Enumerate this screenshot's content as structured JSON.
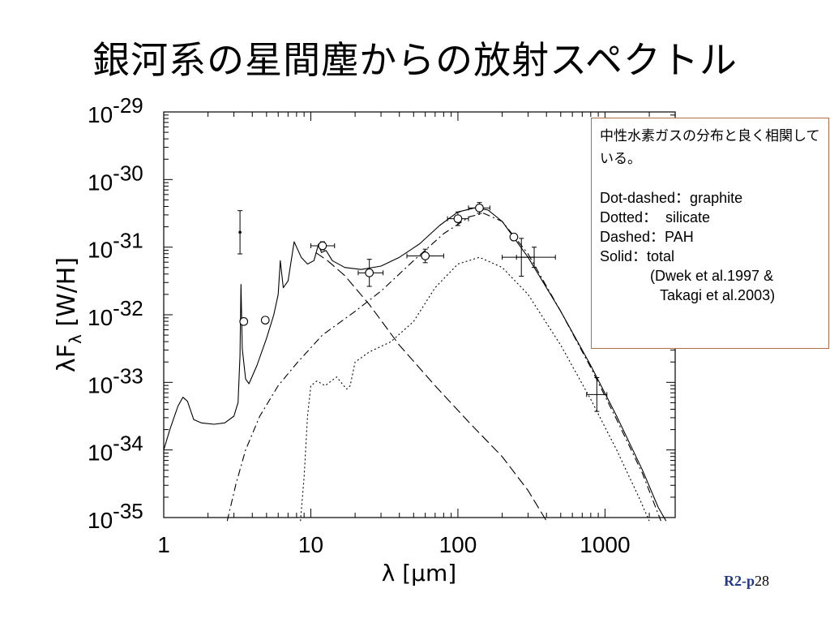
{
  "slide": {
    "title": "銀河系の星間塵からの放射スペクトル",
    "page_prefix": "R2-p",
    "page_number": "28"
  },
  "legend_box": {
    "description": "中性水素ガスの分布と良く相関している。",
    "lines": [
      "Dot-dashed：graphite",
      "Dotted：  silicate",
      "Dashed：PAH",
      "Solid：total"
    ],
    "reference_1": "(Dwek et al.1997 &",
    "reference_2": "Takagi et al.2003)"
  },
  "chart_data": {
    "type": "line",
    "x_scale": "log",
    "y_scale": "log",
    "xlim": [
      1,
      3000
    ],
    "ylim": [
      1e-35,
      1e-29
    ],
    "xlabel": "λ [μm]",
    "ylabel": "λF_λ  [W/H]",
    "x_ticks": [
      {
        "value": 1,
        "label": "1"
      },
      {
        "value": 10,
        "label": "10"
      },
      {
        "value": 100,
        "label": "100"
      },
      {
        "value": 1000,
        "label": "1000"
      }
    ],
    "y_ticks": [
      {
        "exp": -29,
        "base": "10",
        "sup": "-29"
      },
      {
        "exp": -30,
        "base": "10",
        "sup": "-30"
      },
      {
        "exp": -31,
        "base": "10",
        "sup": "-31"
      },
      {
        "exp": -32,
        "base": "10",
        "sup": "-32"
      },
      {
        "exp": -33,
        "base": "10",
        "sup": "-33"
      },
      {
        "exp": -34,
        "base": "10",
        "sup": "-34"
      },
      {
        "exp": -35,
        "base": "10",
        "sup": "-35"
      }
    ],
    "series": [
      {
        "style": "solid",
        "stroke": "#000000",
        "points": [
          [
            1.0,
            -34.0
          ],
          [
            1.1,
            -33.7
          ],
          [
            1.25,
            -33.35
          ],
          [
            1.35,
            -33.22
          ],
          [
            1.45,
            -33.28
          ],
          [
            1.6,
            -33.55
          ],
          [
            1.8,
            -33.6
          ],
          [
            2.2,
            -33.62
          ],
          [
            2.6,
            -33.6
          ],
          [
            3.0,
            -33.5
          ],
          [
            3.2,
            -33.3
          ],
          [
            3.3,
            -32.6
          ],
          [
            3.35,
            -31.55
          ],
          [
            3.42,
            -32.5
          ],
          [
            3.6,
            -32.95
          ],
          [
            3.8,
            -33.02
          ],
          [
            4.3,
            -32.75
          ],
          [
            5.0,
            -32.35
          ],
          [
            5.6,
            -32.0
          ],
          [
            6.0,
            -31.7
          ],
          [
            6.2,
            -31.2
          ],
          [
            6.5,
            -31.6
          ],
          [
            7.0,
            -31.5
          ],
          [
            7.7,
            -30.92
          ],
          [
            8.2,
            -31.05
          ],
          [
            8.6,
            -31.15
          ],
          [
            9.5,
            -31.25
          ],
          [
            10.5,
            -31.2
          ],
          [
            11.3,
            -30.95
          ],
          [
            11.8,
            -31.08
          ],
          [
            12.7,
            -31.05
          ],
          [
            14,
            -31.2
          ],
          [
            17,
            -31.3
          ],
          [
            22,
            -31.33
          ],
          [
            30,
            -31.28
          ],
          [
            40,
            -31.15
          ],
          [
            55,
            -30.95
          ],
          [
            75,
            -30.68
          ],
          [
            100,
            -30.48
          ],
          [
            130,
            -30.42
          ],
          [
            160,
            -30.45
          ],
          [
            200,
            -30.62
          ],
          [
            300,
            -31.15
          ],
          [
            500,
            -31.95
          ],
          [
            800,
            -32.75
          ],
          [
            1200,
            -33.5
          ],
          [
            1800,
            -34.3
          ],
          [
            2300,
            -34.85
          ],
          [
            2600,
            -35.05
          ]
        ]
      },
      {
        "style": "dashed",
        "stroke": "#000000",
        "points": [
          [
            10.8,
            -31.08
          ],
          [
            13,
            -31.2
          ],
          [
            17,
            -31.42
          ],
          [
            25,
            -31.85
          ],
          [
            40,
            -32.45
          ],
          [
            70,
            -33.05
          ],
          [
            120,
            -33.6
          ],
          [
            200,
            -34.1
          ],
          [
            300,
            -34.6
          ],
          [
            400,
            -35.05
          ]
        ]
      },
      {
        "style": "dotdash",
        "stroke": "#000000",
        "points": [
          [
            2.7,
            -35.05
          ],
          [
            3.1,
            -34.5
          ],
          [
            3.6,
            -34.0
          ],
          [
            4.5,
            -33.5
          ],
          [
            6,
            -33.05
          ],
          [
            8,
            -32.72
          ],
          [
            12,
            -32.3
          ],
          [
            20,
            -31.95
          ],
          [
            30,
            -31.65
          ],
          [
            50,
            -31.2
          ],
          [
            80,
            -30.8
          ],
          [
            120,
            -30.55
          ],
          [
            150,
            -30.5
          ],
          [
            200,
            -30.62
          ],
          [
            300,
            -31.1
          ],
          [
            500,
            -31.95
          ],
          [
            800,
            -32.78
          ],
          [
            1200,
            -33.55
          ],
          [
            1800,
            -34.35
          ],
          [
            2400,
            -35.05
          ]
        ]
      },
      {
        "style": "dotted",
        "stroke": "#000000",
        "points": [
          [
            8.5,
            -35.05
          ],
          [
            9.0,
            -34.4
          ],
          [
            9.5,
            -33.5
          ],
          [
            10,
            -33.05
          ],
          [
            11,
            -32.98
          ],
          [
            12.5,
            -33.05
          ],
          [
            15,
            -32.92
          ],
          [
            17.5,
            -33.1
          ],
          [
            18.5,
            -33.05
          ],
          [
            20,
            -32.7
          ],
          [
            25,
            -32.55
          ],
          [
            35,
            -32.4
          ],
          [
            50,
            -32.1
          ],
          [
            70,
            -31.6
          ],
          [
            100,
            -31.25
          ],
          [
            140,
            -31.15
          ],
          [
            200,
            -31.3
          ],
          [
            300,
            -31.7
          ],
          [
            500,
            -32.45
          ],
          [
            800,
            -33.25
          ],
          [
            1200,
            -34.0
          ],
          [
            1700,
            -34.7
          ],
          [
            2000,
            -35.05
          ]
        ]
      }
    ],
    "data_points": [
      {
        "x": 3.5,
        "y": -32.1,
        "yerr": 0.05,
        "marker": "circle"
      },
      {
        "x": 4.9,
        "y": -32.08,
        "yerr": 0.05,
        "marker": "circle"
      },
      {
        "x": 12,
        "y": -30.98,
        "xerr": [
          10,
          14.5
        ],
        "yerr": 0.06,
        "marker": "circle"
      },
      {
        "x": 25,
        "y": -31.38,
        "xerr": [
          21,
          31
        ],
        "yerr": 0.2,
        "marker": "circle"
      },
      {
        "x": 60,
        "y": -31.13,
        "xerr": [
          45,
          80
        ],
        "yerr": 0.1,
        "marker": "circle"
      },
      {
        "x": 100,
        "y": -30.58,
        "xerr": [
          85,
          118
        ],
        "yerr": 0.1,
        "marker": "circle"
      },
      {
        "x": 140,
        "y": -30.42,
        "xerr": [
          118,
          165
        ],
        "yerr": 0.08,
        "marker": "circle"
      },
      {
        "x": 240,
        "y": -30.85,
        "yerr": 0.05,
        "marker": "circle"
      },
      {
        "x": 3.3,
        "y": -30.78,
        "yerr": 0.32,
        "marker": "dot"
      },
      {
        "x": 270,
        "y": -31.15,
        "xerr": [
          200,
          330
        ],
        "yerr": 0.28,
        "marker": "none"
      },
      {
        "x": 330,
        "y": -31.15,
        "xerr": [
          250,
          460
        ],
        "yerr": 0.15,
        "marker": "none"
      },
      {
        "x": 880,
        "y": -33.18,
        "xerr": [
          750,
          1030
        ],
        "yerr": 0.25,
        "marker": "none"
      }
    ]
  }
}
